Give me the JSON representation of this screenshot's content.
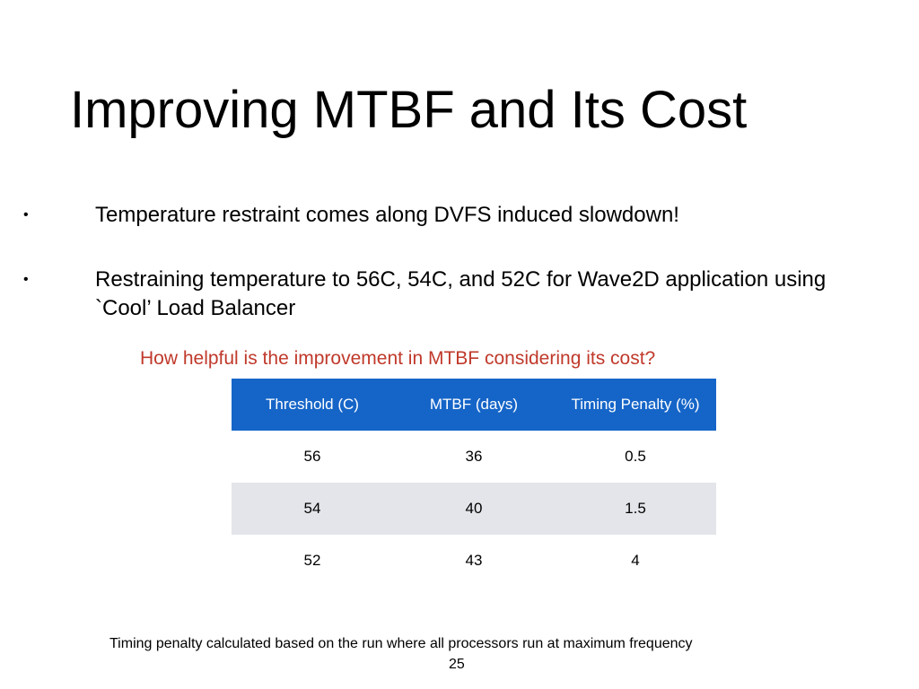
{
  "slide": {
    "title": "Improving MTBF and Its Cost",
    "bullets": [
      "Temperature restraint comes along DVFS induced slowdown!",
      "Restraining temperature to 56C, 54C, and 52C for Wave2D application using `Cool’ Load Balancer"
    ],
    "bullet_glyph": "•",
    "question": "How helpful is the improvement in MTBF considering its cost?",
    "footnote": "Timing penalty calculated based on the run where all processors run at maximum frequency",
    "page_number": "25"
  },
  "table": {
    "headers": [
      "Threshold (C)",
      "MTBF (days)",
      "Timing Penalty (%)"
    ],
    "rows": [
      [
        "56",
        "36",
        "0.5"
      ],
      [
        "54",
        "40",
        "1.5"
      ],
      [
        "52",
        "43",
        "4"
      ]
    ]
  },
  "colors": {
    "header_bg": "#1565c8",
    "question_text": "#c0392b",
    "alt_row_bg": "#e4e5ea"
  }
}
